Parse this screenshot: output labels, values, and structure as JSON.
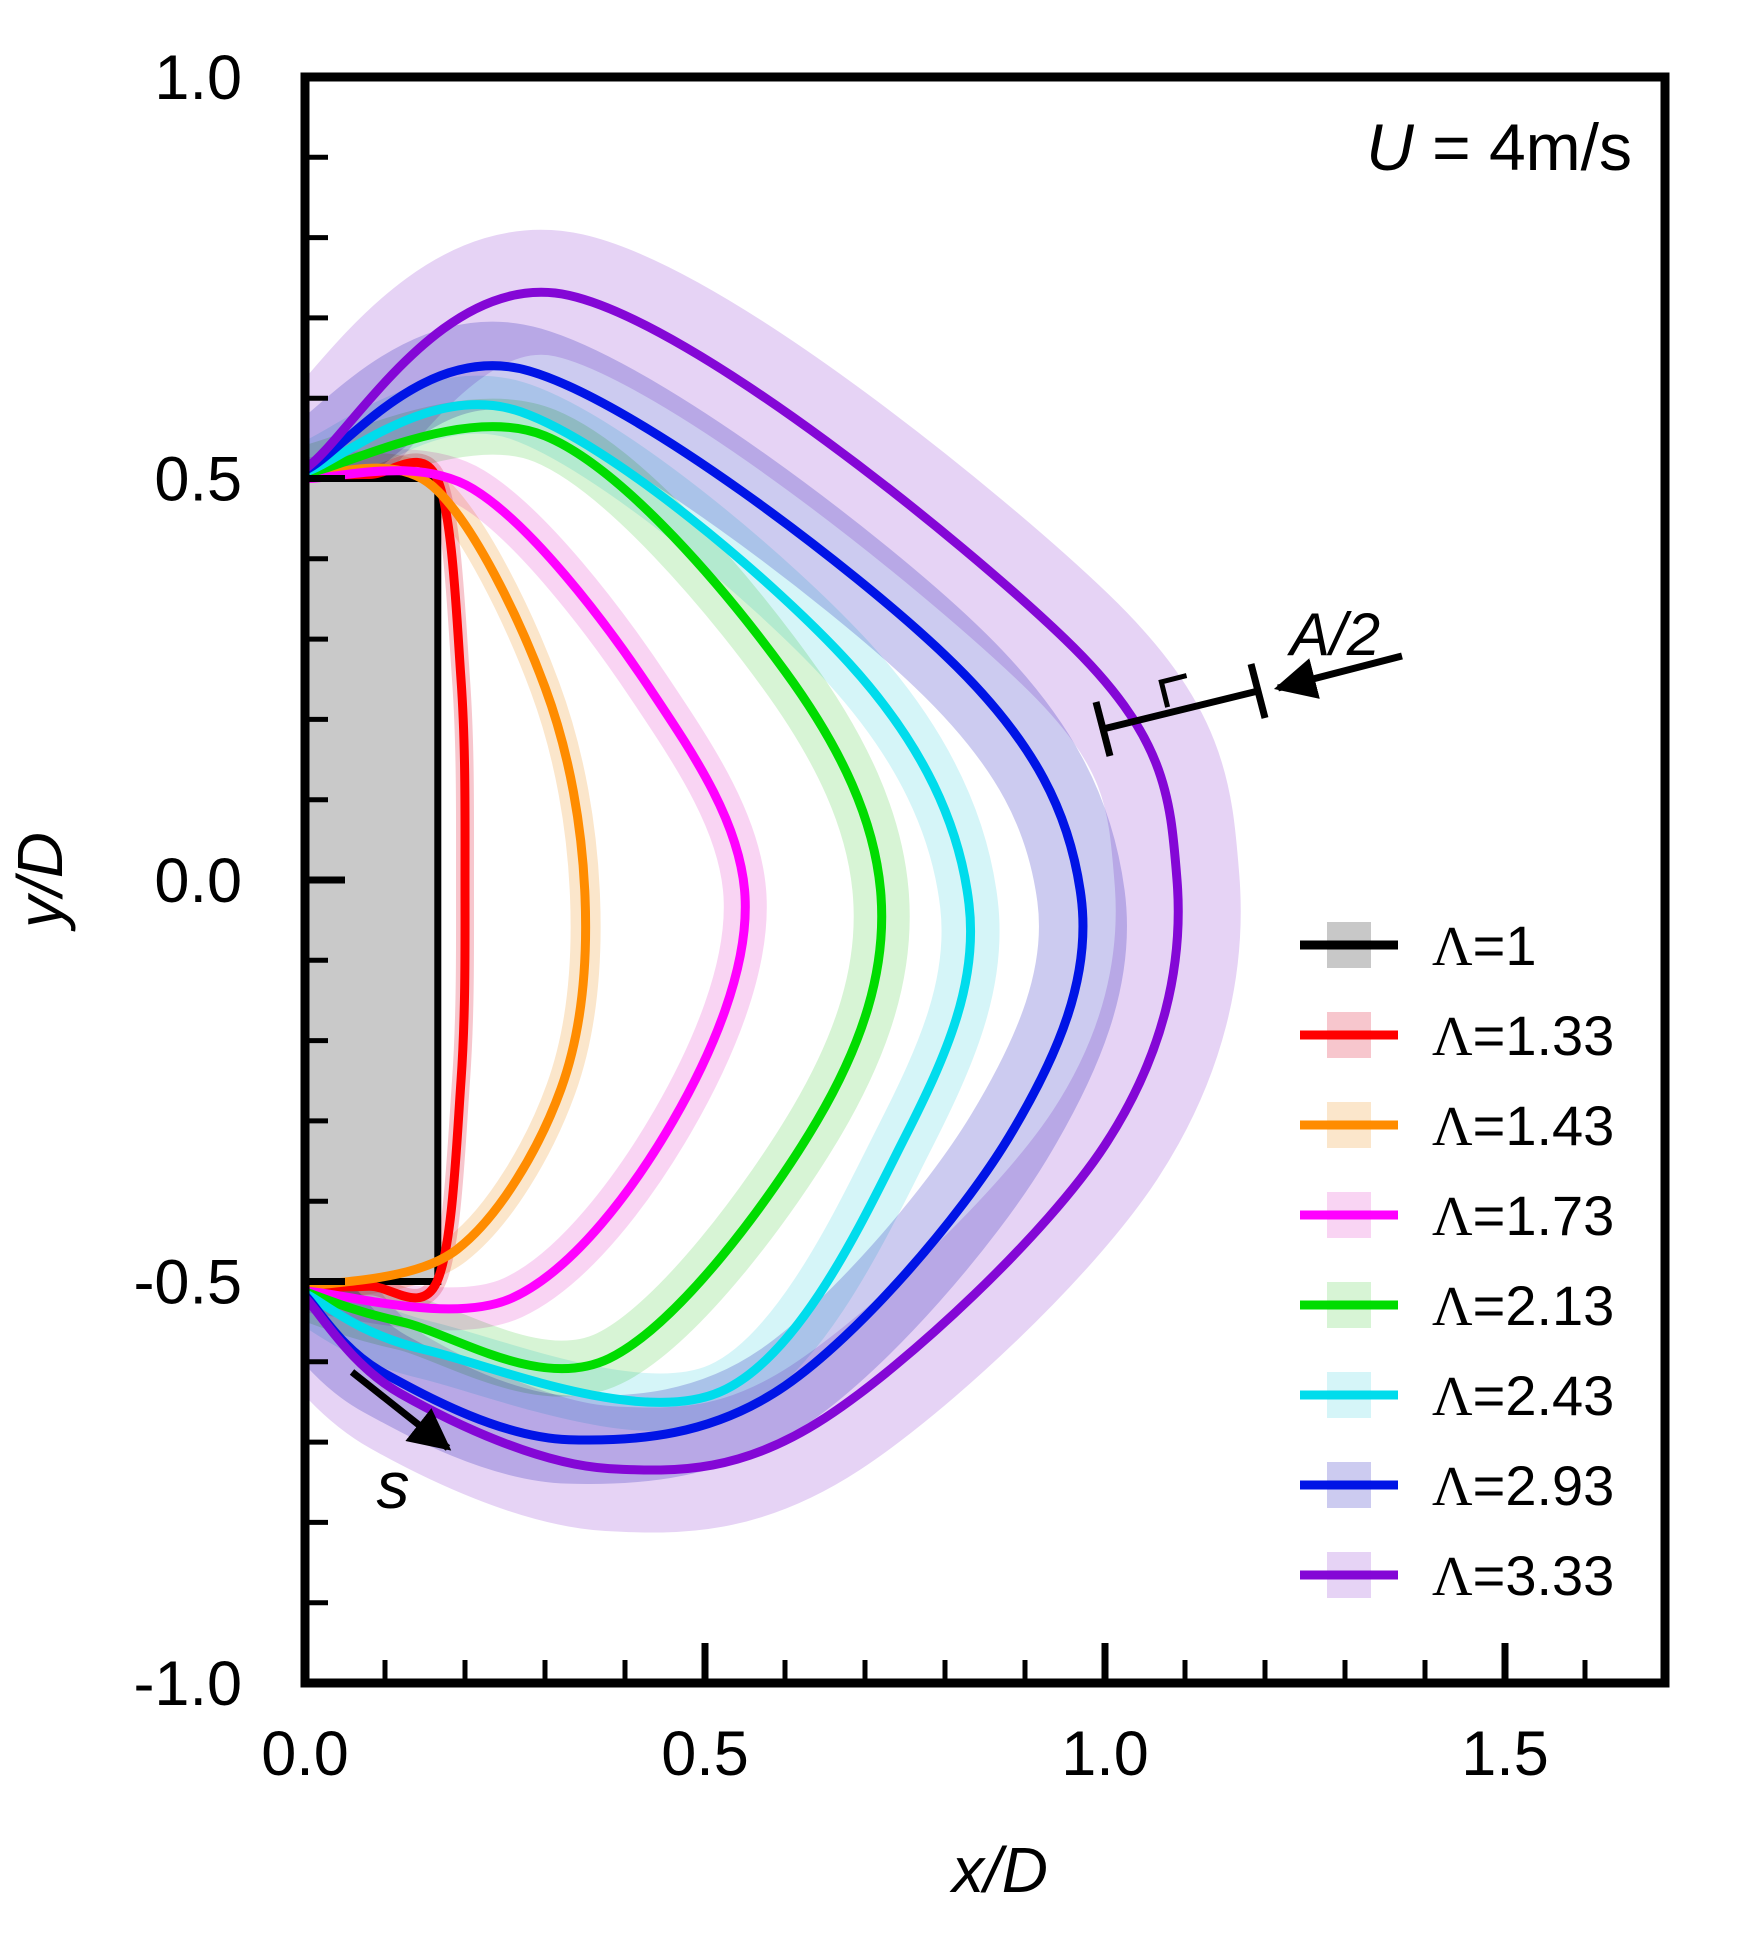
{
  "title": {
    "variable": "U",
    "rest": " = 4m/s"
  },
  "axes": {
    "x": {
      "title": "x/D",
      "min": 0,
      "max": 1.7,
      "majors": [
        0,
        0.5,
        1.0,
        1.5
      ],
      "labels": [
        "0.0",
        "0.5",
        "1.0",
        "1.5"
      ],
      "minor_step": 0.1
    },
    "y": {
      "title": "y/D",
      "min": -1.0,
      "max": 1.0,
      "majors": [
        1.0,
        0.5,
        0.0,
        -0.5,
        -1.0
      ],
      "labels": [
        "1.0",
        "0.5",
        "0.0",
        "-0.5",
        "-1.0"
      ],
      "minor_step": 0.1
    }
  },
  "annotations": {
    "half_amplitude_label": "A/2",
    "arc_length_label": "s"
  },
  "legend": {
    "entries": [
      "Λ=1",
      "Λ=1.33",
      "Λ=1.43",
      "Λ=1.73",
      "Λ=2.13",
      "Λ=2.43",
      "Λ=2.93",
      "Λ=3.33"
    ]
  },
  "chart_data": {
    "type": "line",
    "title": "U = 4m/s",
    "xlabel": "x/D",
    "ylabel": "y/D",
    "xlim": [
      0,
      1.7
    ],
    "ylim": [
      -1.0,
      1.0
    ],
    "grid": false,
    "legend_position": "inside-right",
    "description": "Mean recirculation-zone boundaries behind a rectangular bluff body for different aspect ratios, with shaded flapping-amplitude bands",
    "body": {
      "name": "Λ=1",
      "x_range": [
        0,
        0.166
      ],
      "y_range": [
        -0.5,
        0.5
      ],
      "fill": "#c9c9c9",
      "line_color": "#000000",
      "band_color": "#c8c8c8"
    },
    "series": [
      {
        "name": "Λ=1.33",
        "line_color": "#ff0000",
        "band_color": "#f7c6cd",
        "band_halfwidth": 0.011,
        "points": [
          [
            0,
            0.503
          ],
          [
            0.08,
            0.505
          ],
          [
            0.165,
            0.5
          ],
          [
            0.195,
            0.25
          ],
          [
            0.2,
            0.0
          ],
          [
            0.195,
            -0.25
          ],
          [
            0.165,
            -0.5
          ],
          [
            0.08,
            -0.506
          ],
          [
            0,
            -0.507
          ]
        ]
      },
      {
        "name": "Λ=1.43",
        "line_color": "#ff8c00",
        "band_color": "#fbe6cb",
        "band_halfwidth": 0.019,
        "points": [
          [
            0,
            0.503
          ],
          [
            0.16,
            0.49
          ],
          [
            0.3,
            0.24
          ],
          [
            0.35,
            -0.02
          ],
          [
            0.32,
            -0.26
          ],
          [
            0.19,
            -0.46
          ],
          [
            0,
            -0.507
          ]
        ]
      },
      {
        "name": "Λ=1.73",
        "line_color": "#ff00ff",
        "band_color": "#f9d4f3",
        "band_halfwidth": 0.027,
        "points": [
          [
            0,
            0.5
          ],
          [
            0.21,
            0.487
          ],
          [
            0.43,
            0.24
          ],
          [
            0.55,
            -0.02
          ],
          [
            0.46,
            -0.3
          ],
          [
            0.26,
            -0.52
          ],
          [
            0,
            -0.512
          ]
        ]
      },
      {
        "name": "Λ=2.13",
        "line_color": "#00dc00",
        "band_color": "#d7f4d5",
        "band_halfwidth": 0.035,
        "points": [
          [
            0,
            0.506
          ],
          [
            0.3,
            0.553
          ],
          [
            0.6,
            0.26
          ],
          [
            0.72,
            -0.02
          ],
          [
            0.64,
            -0.3
          ],
          [
            0.38,
            -0.596
          ],
          [
            0.12,
            -0.55
          ],
          [
            0,
            -0.513
          ]
        ]
      },
      {
        "name": "Λ=2.43",
        "line_color": "#00dcec",
        "band_color": "#d5f5f8",
        "band_halfwidth": 0.036,
        "points": [
          [
            0,
            0.508
          ],
          [
            0.27,
            0.583
          ],
          [
            0.68,
            0.27
          ],
          [
            0.83,
            -0.03
          ],
          [
            0.75,
            -0.32
          ],
          [
            0.52,
            -0.637
          ],
          [
            0.15,
            -0.585
          ],
          [
            0,
            -0.515
          ]
        ]
      },
      {
        "name": "Λ=2.93",
        "line_color": "#0014e6",
        "band_color": "#cccbf0",
        "band_halfwidth": 0.055,
        "points": [
          [
            0,
            0.51
          ],
          [
            0.28,
            0.634
          ],
          [
            0.8,
            0.28
          ],
          [
            0.97,
            -0.02
          ],
          [
            0.88,
            -0.32
          ],
          [
            0.6,
            -0.63
          ],
          [
            0.33,
            -0.697
          ],
          [
            0.1,
            -0.615
          ],
          [
            0,
            -0.517
          ]
        ]
      },
      {
        "name": "Λ=3.33",
        "line_color": "#8407d6",
        "band_color": "#e6d3f5",
        "band_halfwidth": 0.078,
        "points": [
          [
            0,
            0.512
          ],
          [
            0.33,
            0.728
          ],
          [
            0.95,
            0.3
          ],
          [
            1.09,
            0.0
          ],
          [
            1.0,
            -0.33
          ],
          [
            0.65,
            -0.67
          ],
          [
            0.38,
            -0.733
          ],
          [
            0.12,
            -0.64
          ],
          [
            0,
            -0.52
          ]
        ]
      }
    ]
  }
}
